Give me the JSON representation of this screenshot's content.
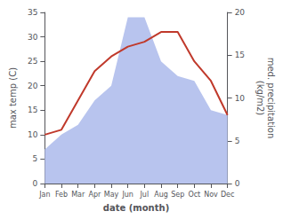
{
  "chart_data": {
    "type": "line",
    "categories": [
      "Jan",
      "Feb",
      "Mar",
      "Apr",
      "May",
      "Jun",
      "Jul",
      "Aug",
      "Sep",
      "Oct",
      "Nov",
      "Dec"
    ],
    "series": [
      {
        "type": "area",
        "color": "#b8c4ee",
        "values": [
          7,
          10,
          12,
          17,
          20,
          34,
          34,
          25,
          22,
          21,
          15,
          14
        ]
      },
      {
        "type": "line",
        "color": "#c0392b",
        "values": [
          10,
          11,
          17,
          23,
          26,
          28,
          29,
          31,
          31,
          25,
          21,
          14
        ]
      }
    ],
    "xlabel": "date (month)",
    "ylabel": "max temp (C)",
    "y2label": "med. precipitation\n(kg/m2)",
    "ylim": [
      0,
      35
    ],
    "yticks": [
      0,
      5,
      10,
      15,
      20,
      25,
      30,
      35
    ],
    "y2lim": [
      0,
      20
    ],
    "y2ticks": [
      0,
      5,
      10,
      15,
      20
    ],
    "grid": false
  }
}
